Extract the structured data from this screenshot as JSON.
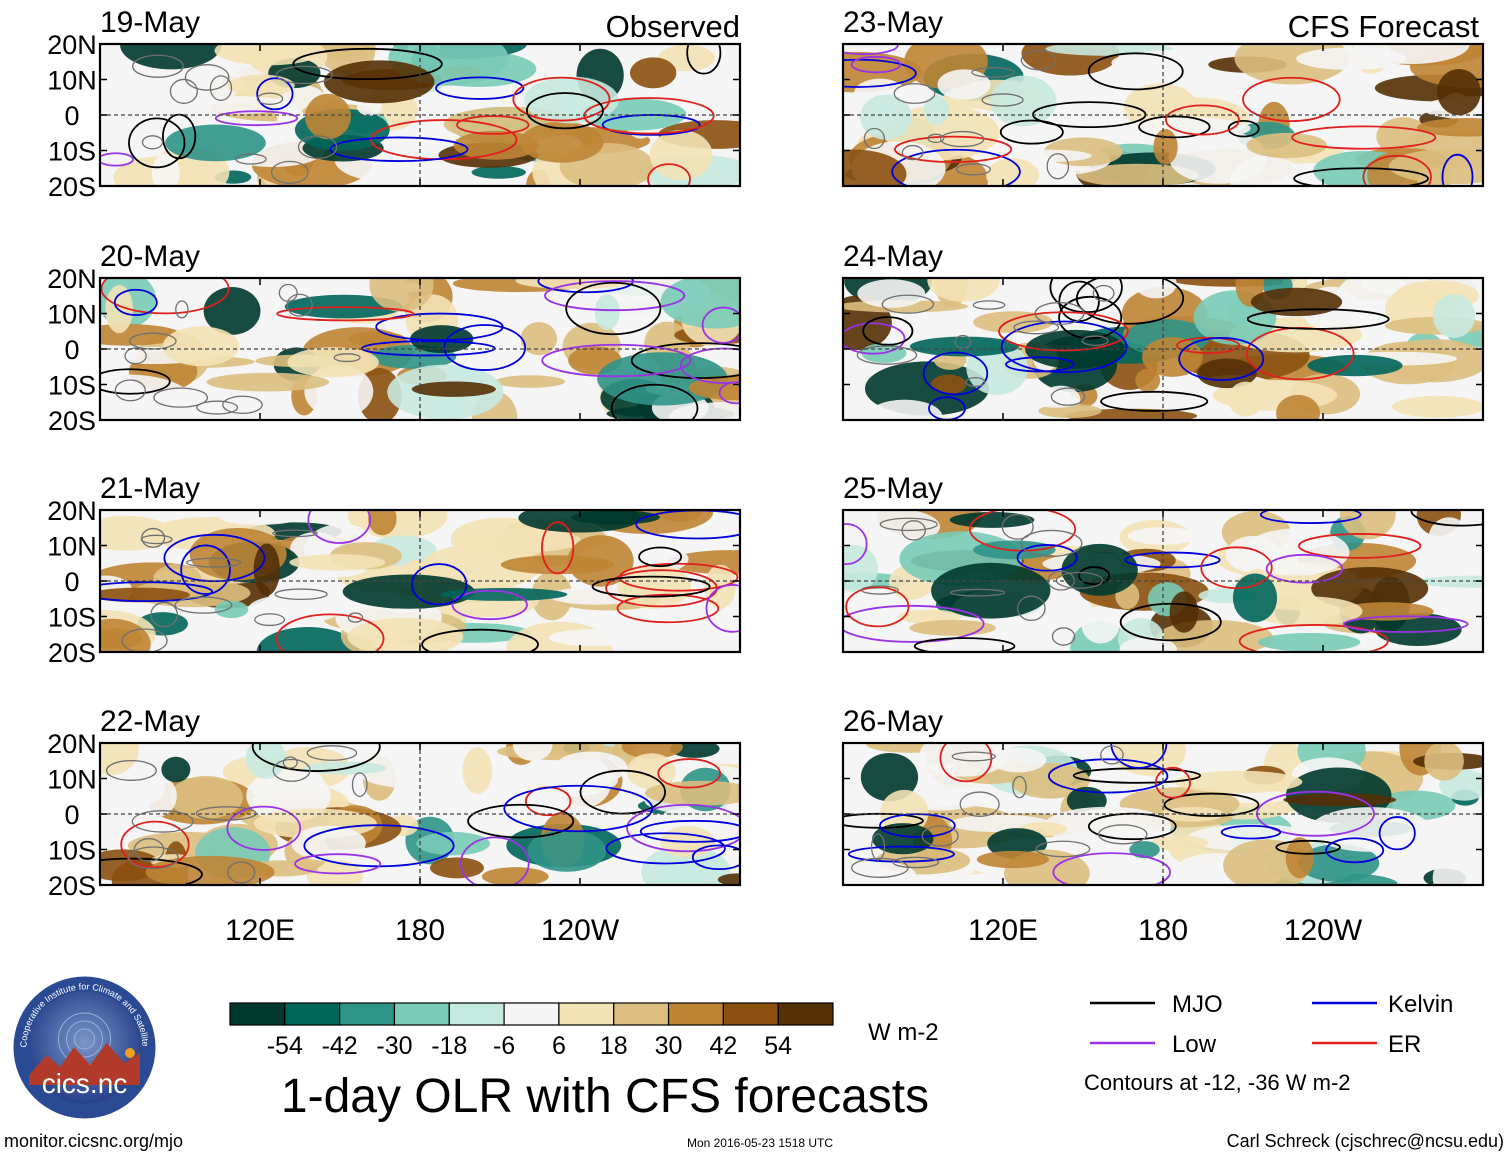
{
  "chart_data": {
    "type": "heatmap",
    "title": "1-day OLR with CFS forecasts",
    "colorbar": {
      "unit": "W m-2",
      "tick_labels": [
        "-54",
        "-42",
        "-30",
        "-18",
        "-6",
        "6",
        "18",
        "30",
        "42",
        "54"
      ],
      "colors": [
        "#00382e",
        "#00665c",
        "#2f9488",
        "#79cbb7",
        "#c6e9df",
        "#f5f5f5",
        "#f3e2b6",
        "#dcbf80",
        "#bf8535",
        "#8c5110",
        "#543006"
      ]
    },
    "axes": {
      "lat_ticks": [
        "20N",
        "10N",
        "0",
        "10S",
        "20S"
      ],
      "lon_ticks": [
        "120E",
        "180",
        "120W"
      ],
      "lat_range": [
        -20,
        20
      ],
      "lon_range": [
        60,
        300
      ],
      "lon_tick_values": [
        120,
        180,
        240
      ]
    },
    "column_headers": {
      "left": "Observed",
      "right": "CFS Forecast"
    },
    "panels_left": [
      {
        "date": "19-May"
      },
      {
        "date": "20-May"
      },
      {
        "date": "21-May"
      },
      {
        "date": "22-May"
      }
    ],
    "panels_right": [
      {
        "date": "23-May"
      },
      {
        "date": "24-May"
      },
      {
        "date": "25-May"
      },
      {
        "date": "26-May"
      }
    ],
    "legend": {
      "entries": [
        {
          "label": "MJO",
          "color": "#000000"
        },
        {
          "label": "Kelvin",
          "color": "#0000dd"
        },
        {
          "label": "Low",
          "color": "#9a32e6"
        },
        {
          "label": "ER",
          "color": "#e0201c"
        }
      ],
      "note": "Contours at -12, -36 W m-2"
    }
  },
  "logo": {
    "text": "cics.nc",
    "ring_text": "Cooperative Institute for Climate and Satellites"
  },
  "footer": {
    "left": "monitor.cicsnc.org/mjo",
    "center": "Mon 2016-05-23 1518 UTC",
    "right": "Carl Schreck (cjschrec@ncsu.edu)"
  }
}
